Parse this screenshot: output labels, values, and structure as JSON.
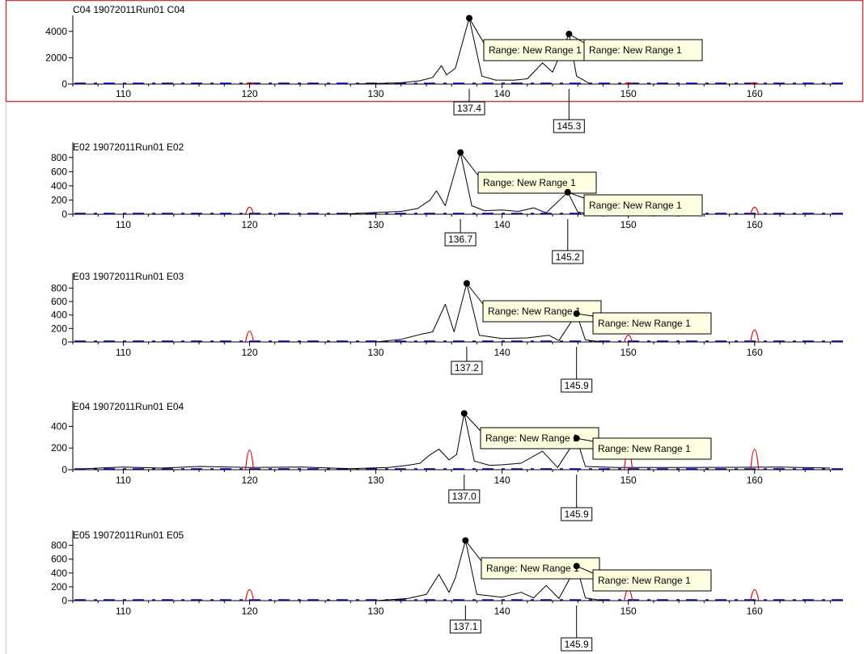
{
  "colors": {
    "sample_trace": "#000000",
    "size_standard_trace": "#e00000",
    "baseline_trace": "#0000c8",
    "selected_border": "#c04040",
    "annotation_fill": "#ffffe1"
  },
  "panels": [
    {
      "title": "C04 19072011Run01 C04",
      "selected": true,
      "y_ticks": [
        "4000",
        "2000",
        "0"
      ],
      "x_ticks": [
        "110",
        "120",
        "130",
        "140",
        "150",
        "160"
      ],
      "chart_data": {
        "type": "line",
        "x_range": [
          106,
          167
        ],
        "y_range": [
          0,
          4600
        ],
        "series": [
          {
            "points": [
              [
                128,
                0
              ],
              [
                130,
                50
              ],
              [
                132,
                100
              ],
              [
                133.5,
                250
              ],
              [
                134.5,
                500
              ],
              [
                135.2,
                1400
              ],
              [
                135.6,
                700
              ],
              [
                136.3,
                1200
              ],
              [
                137.4,
                5000
              ],
              [
                138.4,
                600
              ],
              [
                139.5,
                300
              ],
              [
                141,
                300
              ],
              [
                142,
                400
              ],
              [
                143.2,
                1600
              ],
              [
                144,
                900
              ],
              [
                145.3,
                3800
              ],
              [
                145.9,
                600
              ],
              [
                147,
                0
              ]
            ]
          },
          {
            "points": [
              [
                120,
                100
              ],
              [
                150,
                100
              ],
              [
                160,
                100
              ]
            ]
          }
        ]
      },
      "peaks": [
        {
          "size": "137.4",
          "x": 137.4,
          "y": 5000,
          "label": "Range: New Range 1"
        },
        {
          "size": "145.3",
          "x": 145.3,
          "y": 3800,
          "label": "Range: New Range 1"
        }
      ]
    },
    {
      "title": "E02 19072011Run01 E02",
      "selected": false,
      "y_ticks": [
        "800",
        "600",
        "400",
        "200",
        "0"
      ],
      "x_ticks": [
        "110",
        "120",
        "130",
        "140",
        "150",
        "160"
      ],
      "chart_data": {
        "type": "line",
        "x_range": [
          106,
          167
        ],
        "y_range": [
          0,
          900
        ],
        "series": [
          {
            "points": [
              [
                127,
                0
              ],
              [
                132,
                40
              ],
              [
                133.3,
                80
              ],
              [
                134.3,
                200
              ],
              [
                134.8,
                330
              ],
              [
                135.5,
                120
              ],
              [
                136.7,
                870
              ],
              [
                137.6,
                120
              ],
              [
                138.6,
                50
              ],
              [
                140,
                60
              ],
              [
                141.3,
                40
              ],
              [
                142.5,
                90
              ],
              [
                143.5,
                20
              ],
              [
                145.2,
                310
              ],
              [
                146,
                30
              ],
              [
                147,
                0
              ]
            ]
          },
          {
            "points": [
              [
                120,
                100
              ],
              [
                150,
                80
              ],
              [
                160,
                100
              ]
            ]
          }
        ]
      },
      "peaks": [
        {
          "size": "136.7",
          "x": 136.7,
          "y": 870,
          "label": "Range: New Range 1"
        },
        {
          "size": "145.2",
          "x": 145.2,
          "y": 310,
          "label": "Range: New Range 1"
        }
      ]
    },
    {
      "title": "E03 19072011Run01 E03",
      "selected": false,
      "y_ticks": [
        "800",
        "600",
        "400",
        "200",
        "0"
      ],
      "x_ticks": [
        "110",
        "120",
        "130",
        "140",
        "150",
        "160"
      ],
      "chart_data": {
        "type": "line",
        "x_range": [
          106,
          167
        ],
        "y_range": [
          0,
          900
        ],
        "series": [
          {
            "points": [
              [
                130,
                0
              ],
              [
                132,
                40
              ],
              [
                133.5,
                110
              ],
              [
                134.5,
                150
              ],
              [
                135.5,
                560
              ],
              [
                136.2,
                150
              ],
              [
                137.2,
                870
              ],
              [
                138.2,
                100
              ],
              [
                140,
                50
              ],
              [
                142,
                60
              ],
              [
                143.7,
                100
              ],
              [
                144.5,
                20
              ],
              [
                145.9,
                420
              ],
              [
                146.6,
                30
              ],
              [
                148,
                0
              ]
            ]
          },
          {
            "points": [
              [
                120,
                160
              ],
              [
                150,
                100
              ],
              [
                160,
                180
              ]
            ]
          }
        ]
      },
      "peaks": [
        {
          "size": "137.2",
          "x": 137.2,
          "y": 870,
          "label": "Range: New Range 1"
        },
        {
          "size": "145.9",
          "x": 145.9,
          "y": 420,
          "label": "Range: New Range 1"
        }
      ]
    },
    {
      "title": "E04 19072011Run01 E04",
      "selected": false,
      "y_ticks": [
        "400",
        "200",
        "0"
      ],
      "x_ticks": [
        "110",
        "120",
        "130",
        "140",
        "150",
        "160"
      ],
      "chart_data": {
        "type": "line",
        "x_range": [
          106,
          167
        ],
        "y_range": [
          0,
          560
        ],
        "series": [
          {
            "points": [
              [
                107,
                10
              ],
              [
                110,
                25
              ],
              [
                113,
                15
              ],
              [
                116,
                30
              ],
              [
                120,
                20
              ],
              [
                124,
                25
              ],
              [
                128,
                10
              ],
              [
                131,
                20
              ],
              [
                132.5,
                40
              ],
              [
                133.5,
                60
              ],
              [
                134.2,
                130
              ],
              [
                135,
                190
              ],
              [
                135.8,
                90
              ],
              [
                136.4,
                140
              ],
              [
                137,
                520
              ],
              [
                137.8,
                80
              ],
              [
                139,
                40
              ],
              [
                140,
                45
              ],
              [
                141.5,
                60
              ],
              [
                143.2,
                170
              ],
              [
                144.4,
                20
              ],
              [
                145.9,
                290
              ],
              [
                146.6,
                30
              ],
              [
                149,
                20
              ],
              [
                155,
                20
              ],
              [
                162,
                25
              ],
              [
                166,
                15
              ]
            ]
          },
          {
            "points": [
              [
                120,
                180
              ],
              [
                150,
                180
              ],
              [
                160,
                190
              ]
            ]
          }
        ]
      },
      "peaks": [
        {
          "size": "137.0",
          "x": 137.0,
          "y": 520,
          "label": "Range: New Range 1"
        },
        {
          "size": "145.9",
          "x": 145.9,
          "y": 290,
          "label": "Range: New Range 1"
        }
      ]
    },
    {
      "title": "E05 19072011Run01 E05",
      "selected": false,
      "y_ticks": [
        "800",
        "600",
        "400",
        "200",
        "0"
      ],
      "x_ticks": [
        "110",
        "120",
        "130",
        "140",
        "150",
        "160"
      ],
      "chart_data": {
        "type": "line",
        "x_range": [
          106,
          167
        ],
        "y_range": [
          0,
          900
        ],
        "series": [
          {
            "points": [
              [
                130,
                0
              ],
              [
                132.5,
                30
              ],
              [
                134,
                90
              ],
              [
                135,
                380
              ],
              [
                135.8,
                120
              ],
              [
                136.3,
                330
              ],
              [
                137.1,
                870
              ],
              [
                138,
                90
              ],
              [
                140,
                50
              ],
              [
                141.5,
                120
              ],
              [
                142.5,
                40
              ],
              [
                143.5,
                220
              ],
              [
                144.5,
                30
              ],
              [
                145.9,
                500
              ],
              [
                146.6,
                40
              ],
              [
                148,
                0
              ]
            ]
          },
          {
            "points": [
              [
                120,
                160
              ],
              [
                150,
                170
              ],
              [
                160,
                160
              ]
            ]
          }
        ]
      },
      "peaks": [
        {
          "size": "137.1",
          "x": 137.1,
          "y": 870,
          "label": "Range: New Range 1"
        },
        {
          "size": "145.9",
          "x": 145.9,
          "y": 500,
          "label": "Range: New Range 1"
        }
      ]
    }
  ]
}
